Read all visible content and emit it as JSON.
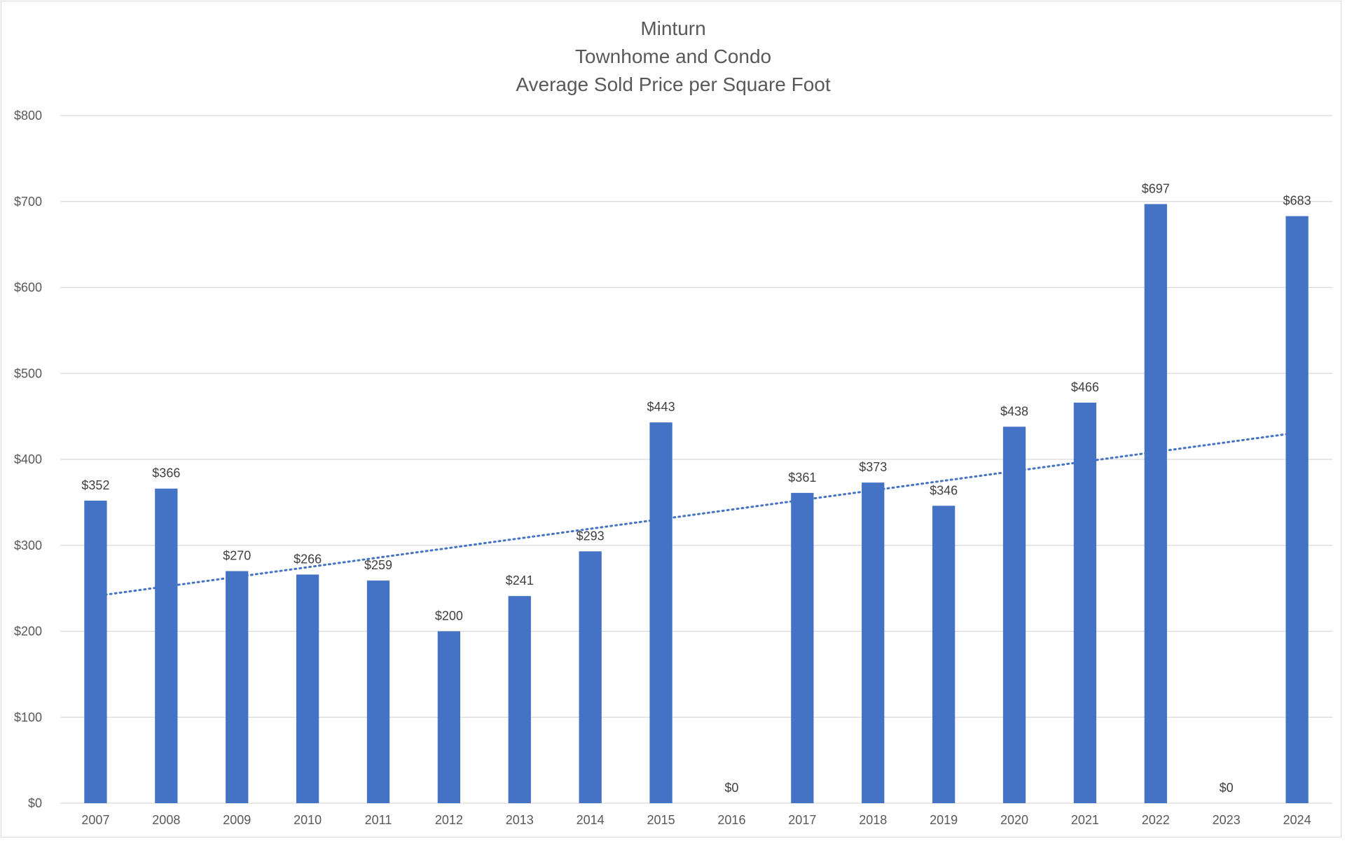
{
  "chart_data": {
    "type": "bar",
    "title_lines": [
      "Minturn",
      "Townhome and Condo",
      "Average Sold Price per Square Foot"
    ],
    "categories": [
      "2007",
      "2008",
      "2009",
      "2010",
      "2011",
      "2012",
      "2013",
      "2014",
      "2015",
      "2016",
      "2017",
      "2018",
      "2019",
      "2020",
      "2021",
      "2022",
      "2023",
      "2024"
    ],
    "values": [
      352,
      366,
      270,
      266,
      259,
      200,
      241,
      293,
      443,
      0,
      361,
      373,
      346,
      438,
      466,
      697,
      0,
      683
    ],
    "data_labels": [
      "$352",
      "$366",
      "$270",
      "$266",
      "$259",
      "$200",
      "$241",
      "$293",
      "$443",
      "$0",
      "$361",
      "$373",
      "$346",
      "$438",
      "$466",
      "$697",
      "$0",
      "$683"
    ],
    "y_ticks": [
      0,
      100,
      200,
      300,
      400,
      500,
      600,
      700,
      800
    ],
    "y_tick_labels": [
      "$0",
      "$100",
      "$200",
      "$300",
      "$400",
      "$500",
      "$600",
      "$700",
      "$800"
    ],
    "ylim": [
      0,
      800
    ],
    "grid": true,
    "legend": "none",
    "trendline": {
      "type": "linear",
      "style": "dotted",
      "start": {
        "x": "2007",
        "y": 241
      },
      "end": {
        "x": "2024",
        "y": 431
      }
    },
    "colors": {
      "bar": "#4472C4",
      "trendline": "#4472C4",
      "gridline": "#d9d9d9",
      "text": "#595959"
    }
  }
}
